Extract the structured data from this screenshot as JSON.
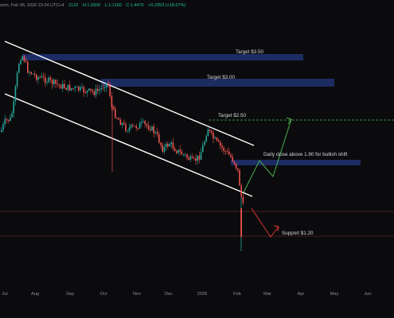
{
  "header": {
    "title_fragment": "oom, Feb 06, 2026 23:24 UTC+4",
    "ohlc": [
      "2122",
      "H:1.5500",
      "L:1.1160",
      "C:1.4470",
      "+0.2353 (+18.67%)"
    ]
  },
  "colors": {
    "background": "#0b0b0d",
    "bullish": "#26a69a",
    "bearish": "#ef5350",
    "zone": "#1e2f6b",
    "channel": "#ffffff",
    "projection_up": "#4caf50",
    "projection_down": "#e53935",
    "target_line": "#4caf50",
    "support_line": "#8a2e2e"
  },
  "annotations": {
    "target_350": "Target $3.50",
    "target_300": "Target $3.00",
    "target_250": "Target $2.50",
    "bullish_note": "Daily close above 1.90 for bullish shift",
    "support": "Support $1.20"
  },
  "x_axis": {
    "ticks": [
      "Jul",
      "Aug",
      "Sep",
      "Oct",
      "Nov",
      "Dec",
      "2026",
      "Feb",
      "Mar",
      "Apr",
      "May",
      "Jun"
    ]
  },
  "chart_data": {
    "type": "candlestick",
    "title": "",
    "xlabel": "",
    "ylabel": "",
    "y_axis_labels_visible": false,
    "grid": false,
    "x_ticks": [
      "Jul",
      "Aug",
      "Sep",
      "Oct",
      "Nov",
      "Dec",
      "2026",
      "Feb",
      "Mar",
      "Apr",
      "May",
      "Jun"
    ],
    "price_series_approx": [
      {
        "month": "Jul",
        "close": 2.4
      },
      {
        "month": "Jul",
        "close": 3.5
      },
      {
        "month": "Aug",
        "close": 3.1
      },
      {
        "month": "Sep",
        "close": 2.95
      },
      {
        "month": "Oct",
        "close": 3.0
      },
      {
        "month": "Oct",
        "close": 2.6
      },
      {
        "month": "Nov",
        "close": 2.2
      },
      {
        "month": "Dec",
        "close": 2.0
      },
      {
        "month": "2026",
        "close": 2.5
      },
      {
        "month": "Jan",
        "close": 1.95
      },
      {
        "month": "Feb",
        "close": 1.25
      },
      {
        "month": "Feb",
        "close": 1.45
      }
    ],
    "levels": [
      {
        "label": "Target $3.50",
        "value": 3.5,
        "kind": "resistance zone"
      },
      {
        "label": "Target $3.00",
        "value": 3.0,
        "kind": "resistance zone"
      },
      {
        "label": "Target $2.50",
        "value": 2.5,
        "kind": "target line"
      },
      {
        "label": "Daily close above 1.90 for bullish shift",
        "value": 1.9,
        "kind": "zone"
      },
      {
        "label": "Support $1.20",
        "value": 1.2,
        "kind": "support line"
      }
    ],
    "channel": "descending parallel channel from Jul to Feb",
    "projections": [
      "bullish path toward Target $2.50",
      "bearish path toward Support $1.20"
    ]
  }
}
